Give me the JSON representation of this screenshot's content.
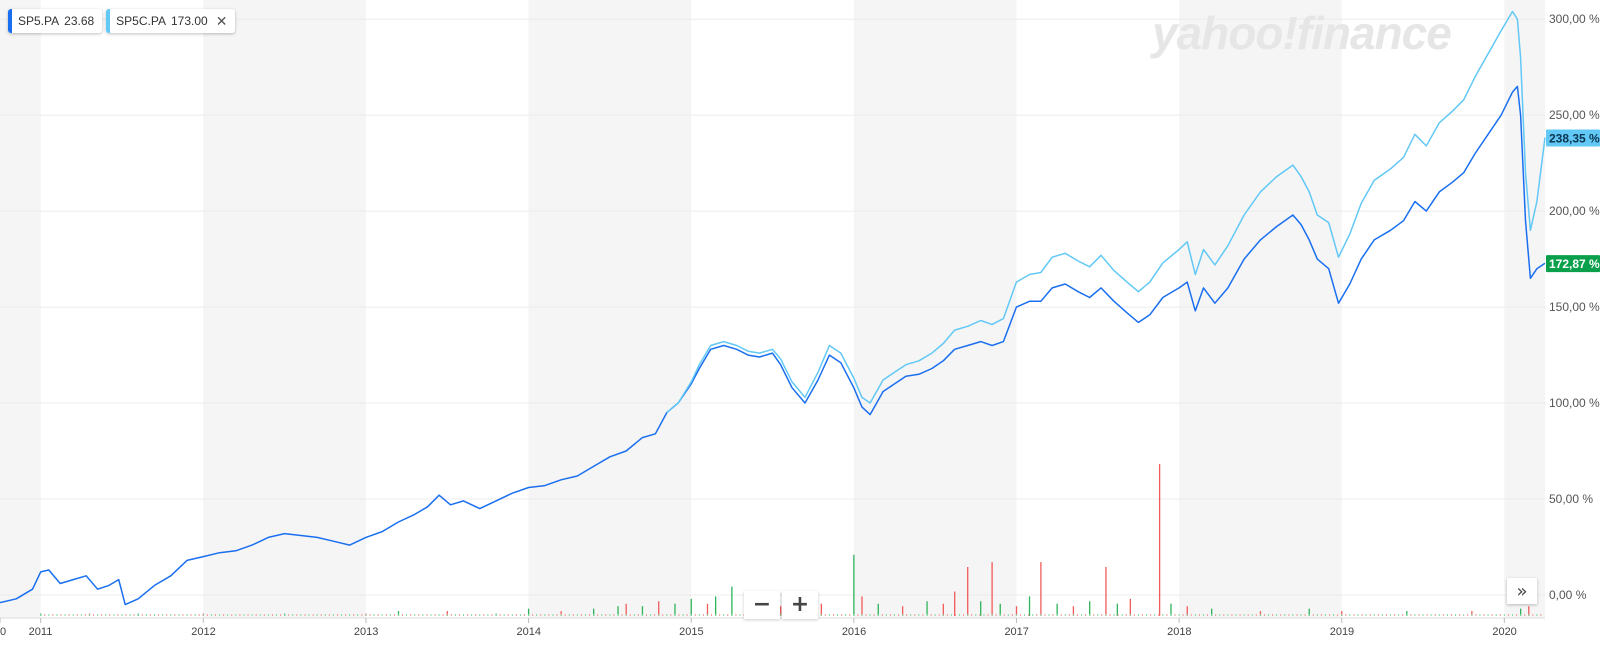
{
  "legend": [
    {
      "symbol": "SP5.PA",
      "value": "23.68",
      "color": "#1a6ff0",
      "closable": false
    },
    {
      "symbol": "SP5C.PA",
      "value": "173.00",
      "color": "#62c8f6",
      "closable": true
    }
  ],
  "watermark": "yahoo!finance",
  "controls": {
    "zoom_out": "−",
    "zoom_in": "+",
    "scroll_right": "»"
  },
  "chart_data": {
    "type": "line",
    "x_axis": {
      "tick_labels": [
        "0",
        "2011",
        "2012",
        "2013",
        "2014",
        "2015",
        "2016",
        "2017",
        "2018",
        "2019",
        "2020"
      ],
      "range": [
        2010.75,
        2020.25
      ]
    },
    "y_axis": {
      "tick_labels": [
        "0,00 %",
        "50,00 %",
        "100,00 %",
        "150,00 %",
        "200,00 %",
        "250,00 %",
        "300,00 %"
      ],
      "range": [
        -12,
        310
      ],
      "position": "right"
    },
    "grid": true,
    "legend_position": "top-left",
    "current_value_labels": [
      {
        "text": "238,35 %",
        "value": 238.35,
        "color": "#62c8f6"
      },
      {
        "text": "172,87 %",
        "value": 172.87,
        "color": "#0aa04b"
      }
    ],
    "series": [
      {
        "name": "SP5.PA",
        "color": "#1a6ff0",
        "points": [
          [
            2010.75,
            -4
          ],
          [
            2010.85,
            -2
          ],
          [
            2010.95,
            3
          ],
          [
            2011.0,
            12
          ],
          [
            2011.05,
            13
          ],
          [
            2011.12,
            6
          ],
          [
            2011.2,
            8
          ],
          [
            2011.28,
            10
          ],
          [
            2011.35,
            3
          ],
          [
            2011.42,
            5
          ],
          [
            2011.48,
            8
          ],
          [
            2011.52,
            -5
          ],
          [
            2011.6,
            -2
          ],
          [
            2011.7,
            5
          ],
          [
            2011.8,
            10
          ],
          [
            2011.9,
            18
          ],
          [
            2012.0,
            20
          ],
          [
            2012.1,
            22
          ],
          [
            2012.2,
            23
          ],
          [
            2012.3,
            26
          ],
          [
            2012.4,
            30
          ],
          [
            2012.5,
            32
          ],
          [
            2012.6,
            31
          ],
          [
            2012.7,
            30
          ],
          [
            2012.8,
            28
          ],
          [
            2012.9,
            26
          ],
          [
            2013.0,
            30
          ],
          [
            2013.1,
            33
          ],
          [
            2013.2,
            38
          ],
          [
            2013.3,
            42
          ],
          [
            2013.38,
            46
          ],
          [
            2013.45,
            52
          ],
          [
            2013.52,
            47
          ],
          [
            2013.6,
            49
          ],
          [
            2013.7,
            45
          ],
          [
            2013.8,
            49
          ],
          [
            2013.9,
            53
          ],
          [
            2014.0,
            56
          ],
          [
            2014.1,
            57
          ],
          [
            2014.2,
            60
          ],
          [
            2014.3,
            62
          ],
          [
            2014.4,
            67
          ],
          [
            2014.5,
            72
          ],
          [
            2014.6,
            75
          ],
          [
            2014.7,
            82
          ],
          [
            2014.78,
            84
          ],
          [
            2014.85,
            95
          ],
          [
            2014.92,
            100
          ],
          [
            2015.0,
            110
          ],
          [
            2015.05,
            118
          ],
          [
            2015.12,
            128
          ],
          [
            2015.2,
            130
          ],
          [
            2015.28,
            128
          ],
          [
            2015.35,
            125
          ],
          [
            2015.42,
            124
          ],
          [
            2015.5,
            126
          ],
          [
            2015.55,
            120
          ],
          [
            2015.62,
            108
          ],
          [
            2015.7,
            100
          ],
          [
            2015.78,
            112
          ],
          [
            2015.85,
            125
          ],
          [
            2015.92,
            121
          ],
          [
            2016.0,
            108
          ],
          [
            2016.05,
            98
          ],
          [
            2016.1,
            94
          ],
          [
            2016.18,
            106
          ],
          [
            2016.25,
            110
          ],
          [
            2016.32,
            114
          ],
          [
            2016.4,
            115
          ],
          [
            2016.48,
            118
          ],
          [
            2016.55,
            122
          ],
          [
            2016.62,
            128
          ],
          [
            2016.7,
            130
          ],
          [
            2016.78,
            132
          ],
          [
            2016.85,
            130
          ],
          [
            2016.92,
            132
          ],
          [
            2017.0,
            150
          ],
          [
            2017.08,
            153
          ],
          [
            2017.15,
            153
          ],
          [
            2017.22,
            160
          ],
          [
            2017.3,
            162
          ],
          [
            2017.38,
            158
          ],
          [
            2017.45,
            155
          ],
          [
            2017.52,
            160
          ],
          [
            2017.6,
            153
          ],
          [
            2017.68,
            147
          ],
          [
            2017.75,
            142
          ],
          [
            2017.82,
            146
          ],
          [
            2017.9,
            155
          ],
          [
            2018.0,
            160
          ],
          [
            2018.05,
            163
          ],
          [
            2018.1,
            148
          ],
          [
            2018.15,
            160
          ],
          [
            2018.22,
            152
          ],
          [
            2018.3,
            160
          ],
          [
            2018.4,
            175
          ],
          [
            2018.5,
            185
          ],
          [
            2018.6,
            192
          ],
          [
            2018.7,
            198
          ],
          [
            2018.75,
            193
          ],
          [
            2018.8,
            185
          ],
          [
            2018.85,
            175
          ],
          [
            2018.92,
            170
          ],
          [
            2018.98,
            152
          ],
          [
            2019.05,
            162
          ],
          [
            2019.12,
            175
          ],
          [
            2019.2,
            185
          ],
          [
            2019.3,
            190
          ],
          [
            2019.38,
            195
          ],
          [
            2019.45,
            205
          ],
          [
            2019.52,
            200
          ],
          [
            2019.6,
            210
          ],
          [
            2019.68,
            215
          ],
          [
            2019.75,
            220
          ],
          [
            2019.82,
            230
          ],
          [
            2019.9,
            240
          ],
          [
            2019.98,
            250
          ],
          [
            2020.05,
            262
          ],
          [
            2020.08,
            265
          ],
          [
            2020.1,
            250
          ],
          [
            2020.13,
            195
          ],
          [
            2020.16,
            165
          ],
          [
            2020.2,
            170
          ],
          [
            2020.25,
            172.87
          ]
        ]
      },
      {
        "name": "SP5C.PA",
        "color": "#62c8f6",
        "points": [
          [
            2014.85,
            95
          ],
          [
            2014.92,
            100
          ],
          [
            2015.0,
            111
          ],
          [
            2015.05,
            120
          ],
          [
            2015.12,
            130
          ],
          [
            2015.2,
            132
          ],
          [
            2015.28,
            130
          ],
          [
            2015.35,
            127
          ],
          [
            2015.42,
            126
          ],
          [
            2015.5,
            128
          ],
          [
            2015.55,
            123
          ],
          [
            2015.62,
            111
          ],
          [
            2015.7,
            103
          ],
          [
            2015.78,
            116
          ],
          [
            2015.85,
            130
          ],
          [
            2015.92,
            126
          ],
          [
            2016.0,
            113
          ],
          [
            2016.05,
            103
          ],
          [
            2016.1,
            100
          ],
          [
            2016.18,
            112
          ],
          [
            2016.25,
            116
          ],
          [
            2016.32,
            120
          ],
          [
            2016.4,
            122
          ],
          [
            2016.48,
            126
          ],
          [
            2016.55,
            131
          ],
          [
            2016.62,
            138
          ],
          [
            2016.7,
            140
          ],
          [
            2016.78,
            143
          ],
          [
            2016.85,
            141
          ],
          [
            2016.92,
            144
          ],
          [
            2017.0,
            163
          ],
          [
            2017.08,
            167
          ],
          [
            2017.15,
            168
          ],
          [
            2017.22,
            176
          ],
          [
            2017.3,
            178
          ],
          [
            2017.38,
            174
          ],
          [
            2017.45,
            171
          ],
          [
            2017.52,
            177
          ],
          [
            2017.6,
            169
          ],
          [
            2017.68,
            163
          ],
          [
            2017.75,
            158
          ],
          [
            2017.82,
            163
          ],
          [
            2017.9,
            173
          ],
          [
            2018.0,
            180
          ],
          [
            2018.05,
            184
          ],
          [
            2018.1,
            167
          ],
          [
            2018.15,
            180
          ],
          [
            2018.22,
            172
          ],
          [
            2018.3,
            182
          ],
          [
            2018.4,
            198
          ],
          [
            2018.5,
            210
          ],
          [
            2018.6,
            218
          ],
          [
            2018.7,
            224
          ],
          [
            2018.75,
            218
          ],
          [
            2018.8,
            210
          ],
          [
            2018.85,
            198
          ],
          [
            2018.92,
            194
          ],
          [
            2018.98,
            176
          ],
          [
            2019.05,
            188
          ],
          [
            2019.12,
            204
          ],
          [
            2019.2,
            216
          ],
          [
            2019.3,
            222
          ],
          [
            2019.38,
            228
          ],
          [
            2019.45,
            240
          ],
          [
            2019.52,
            234
          ],
          [
            2019.6,
            246
          ],
          [
            2019.68,
            252
          ],
          [
            2019.75,
            258
          ],
          [
            2019.82,
            270
          ],
          [
            2019.9,
            282
          ],
          [
            2019.98,
            294
          ],
          [
            2020.05,
            304
          ],
          [
            2020.08,
            300
          ],
          [
            2020.1,
            280
          ],
          [
            2020.13,
            220
          ],
          [
            2020.16,
            190
          ],
          [
            2020.2,
            205
          ],
          [
            2020.25,
            238.35
          ]
        ]
      }
    ],
    "volume": [
      [
        2011.0,
        1,
        "g"
      ],
      [
        2011.3,
        1,
        "r"
      ],
      [
        2011.6,
        1,
        "g"
      ],
      [
        2012.0,
        1,
        "r"
      ],
      [
        2012.5,
        1,
        "g"
      ],
      [
        2013.0,
        1,
        "r"
      ],
      [
        2013.2,
        2,
        "g"
      ],
      [
        2013.5,
        2,
        "r"
      ],
      [
        2013.8,
        1,
        "g"
      ],
      [
        2014.0,
        3,
        "g"
      ],
      [
        2014.2,
        2,
        "r"
      ],
      [
        2014.4,
        3,
        "g"
      ],
      [
        2014.55,
        4,
        "g"
      ],
      [
        2014.6,
        5,
        "r"
      ],
      [
        2014.7,
        4,
        "g"
      ],
      [
        2014.8,
        6,
        "r"
      ],
      [
        2014.9,
        5,
        "g"
      ],
      [
        2015.0,
        7,
        "g"
      ],
      [
        2015.1,
        5,
        "r"
      ],
      [
        2015.15,
        8,
        "g"
      ],
      [
        2015.25,
        12,
        "g"
      ],
      [
        2015.35,
        6,
        "r"
      ],
      [
        2015.45,
        5,
        "g"
      ],
      [
        2015.55,
        4,
        "r"
      ],
      [
        2015.65,
        6,
        "g"
      ],
      [
        2015.8,
        5,
        "r"
      ],
      [
        2016.0,
        25,
        "g"
      ],
      [
        2016.05,
        8,
        "r"
      ],
      [
        2016.15,
        5,
        "g"
      ],
      [
        2016.3,
        4,
        "r"
      ],
      [
        2016.45,
        6,
        "g"
      ],
      [
        2016.55,
        5,
        "r"
      ],
      [
        2016.62,
        10,
        "r"
      ],
      [
        2016.7,
        20,
        "r"
      ],
      [
        2016.78,
        6,
        "g"
      ],
      [
        2016.85,
        22,
        "r"
      ],
      [
        2016.9,
        5,
        "g"
      ],
      [
        2017.0,
        4,
        "r"
      ],
      [
        2017.08,
        8,
        "g"
      ],
      [
        2017.15,
        22,
        "r"
      ],
      [
        2017.25,
        5,
        "g"
      ],
      [
        2017.35,
        4,
        "r"
      ],
      [
        2017.45,
        6,
        "g"
      ],
      [
        2017.55,
        20,
        "r"
      ],
      [
        2017.62,
        5,
        "g"
      ],
      [
        2017.7,
        7,
        "r"
      ],
      [
        2017.88,
        62,
        "r"
      ],
      [
        2017.95,
        5,
        "g"
      ],
      [
        2018.05,
        4,
        "r"
      ],
      [
        2018.2,
        3,
        "g"
      ],
      [
        2018.5,
        2,
        "r"
      ],
      [
        2018.8,
        3,
        "g"
      ],
      [
        2019.0,
        2,
        "r"
      ],
      [
        2019.4,
        2,
        "g"
      ],
      [
        2019.8,
        2,
        "r"
      ],
      [
        2020.1,
        3,
        "g"
      ],
      [
        2020.15,
        4,
        "r"
      ]
    ]
  }
}
